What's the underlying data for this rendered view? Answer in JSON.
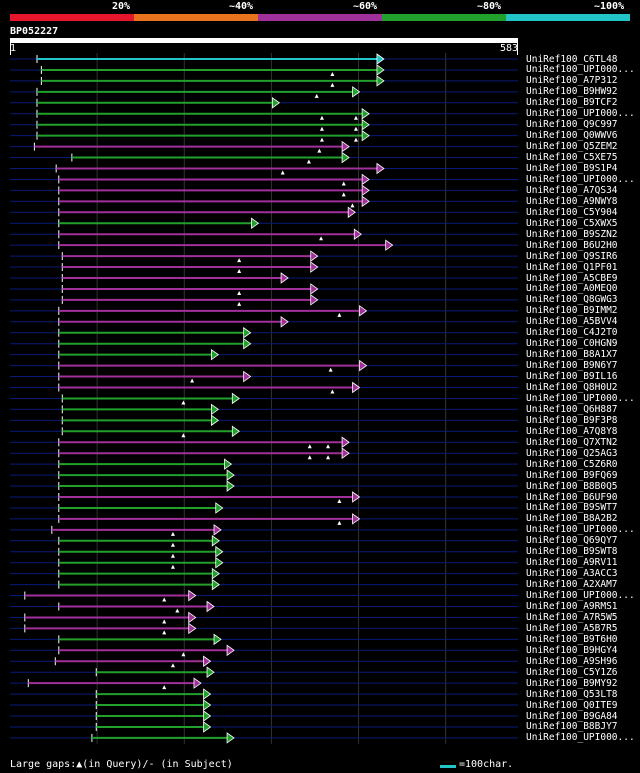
{
  "scale": {
    "labels": [
      "20%",
      "~40%",
      "~60%",
      "~80%",
      "~100%"
    ],
    "colors": [
      "#e6162c",
      "#e8731c",
      "#a0309a",
      "#22a02c",
      "#22c4c8"
    ]
  },
  "query": {
    "name": "BP052227",
    "start": "1",
    "end": "583",
    "length": 583
  },
  "colors": {
    "green": "#22a02c",
    "magenta": "#a0309a",
    "cyan": "#22c4c8",
    "gridline": "#0a1a78"
  },
  "hits": [
    {
      "name": "UniRef100_C6TL48",
      "color": "cyan",
      "start": 31,
      "end": 428,
      "arrow": true,
      "marks": []
    },
    {
      "name": "UniRef100_UPI000...",
      "color": "green",
      "start": 36,
      "end": 428,
      "arrow": true,
      "marks": [
        370
      ]
    },
    {
      "name": "UniRef100_A7P312",
      "color": "green",
      "start": 36,
      "end": 428,
      "arrow": true,
      "marks": [
        370
      ]
    },
    {
      "name": "UniRef100_B9HW92",
      "color": "green",
      "start": 31,
      "end": 400,
      "arrow": true,
      "marks": [
        352
      ]
    },
    {
      "name": "UniRef100_B9TCF2",
      "color": "green",
      "start": 31,
      "end": 308,
      "arrow": true,
      "marks": []
    },
    {
      "name": "UniRef100_UPI000...",
      "color": "green",
      "start": 31,
      "end": 411,
      "arrow": true,
      "marks": [
        358,
        397
      ]
    },
    {
      "name": "UniRef100_Q9C997",
      "color": "green",
      "start": 31,
      "end": 411,
      "arrow": true,
      "marks": [
        358,
        397
      ]
    },
    {
      "name": "UniRef100_Q0WWV6",
      "color": "green",
      "start": 31,
      "end": 411,
      "arrow": true,
      "marks": [
        358,
        397
      ]
    },
    {
      "name": "UniRef100_Q5ZEM2",
      "color": "magenta",
      "start": 28,
      "end": 388,
      "arrow": true,
      "marks": [
        355
      ]
    },
    {
      "name": "UniRef100_C5XE75",
      "color": "green",
      "start": 71,
      "end": 388,
      "arrow": true,
      "marks": [
        343
      ]
    },
    {
      "name": "UniRef100_B9S1P4",
      "color": "magenta",
      "start": 53,
      "end": 428,
      "arrow": true,
      "marks": [
        313
      ]
    },
    {
      "name": "UniRef100_UPI000...",
      "color": "magenta",
      "start": 56,
      "end": 411,
      "arrow": true,
      "marks": [
        383
      ]
    },
    {
      "name": "UniRef100_A7QS34",
      "color": "magenta",
      "start": 56,
      "end": 411,
      "arrow": true,
      "marks": [
        383
      ]
    },
    {
      "name": "UniRef100_A9NWY8",
      "color": "magenta",
      "start": 56,
      "end": 411,
      "arrow": true,
      "marks": [
        393
      ]
    },
    {
      "name": "UniRef100_C5Y904",
      "color": "magenta",
      "start": 56,
      "end": 395,
      "arrow": true,
      "marks": []
    },
    {
      "name": "UniRef100_C5XWX5",
      "color": "green",
      "start": 56,
      "end": 284,
      "arrow": true,
      "marks": []
    },
    {
      "name": "UniRef100_B9SZN2",
      "color": "magenta",
      "start": 56,
      "end": 402,
      "arrow": true,
      "marks": [
        357
      ]
    },
    {
      "name": "UniRef100_B6U2H0",
      "color": "magenta",
      "start": 56,
      "end": 438,
      "arrow": true,
      "marks": []
    },
    {
      "name": "UniRef100_Q9SIR6",
      "color": "magenta",
      "start": 60,
      "end": 352,
      "arrow": true,
      "marks": [
        263
      ]
    },
    {
      "name": "UniRef100_Q1PF01",
      "color": "magenta",
      "start": 60,
      "end": 352,
      "arrow": true,
      "marks": [
        263
      ]
    },
    {
      "name": "UniRef100_A5CBE9",
      "color": "magenta",
      "start": 60,
      "end": 318,
      "arrow": true,
      "marks": []
    },
    {
      "name": "UniRef100_A0MEQ0",
      "color": "magenta",
      "start": 60,
      "end": 352,
      "arrow": true,
      "marks": [
        263
      ]
    },
    {
      "name": "UniRef100_Q8GWG3",
      "color": "magenta",
      "start": 60,
      "end": 352,
      "arrow": true,
      "marks": [
        263
      ]
    },
    {
      "name": "UniRef100_B9IMM2",
      "color": "magenta",
      "start": 56,
      "end": 408,
      "arrow": true,
      "marks": [
        378
      ]
    },
    {
      "name": "UniRef100_A5BVV4",
      "color": "magenta",
      "start": 56,
      "end": 318,
      "arrow": true,
      "marks": []
    },
    {
      "name": "UniRef100_C4J2T0",
      "color": "green",
      "start": 56,
      "end": 275,
      "arrow": true,
      "marks": []
    },
    {
      "name": "UniRef100_C0HGN9",
      "color": "green",
      "start": 56,
      "end": 275,
      "arrow": true,
      "marks": []
    },
    {
      "name": "UniRef100_B8A1X7",
      "color": "green",
      "start": 56,
      "end": 238,
      "arrow": true,
      "marks": []
    },
    {
      "name": "UniRef100_B9N6Y7",
      "color": "magenta",
      "start": 56,
      "end": 408,
      "arrow": true,
      "marks": [
        368
      ]
    },
    {
      "name": "UniRef100_B9IL16",
      "color": "magenta",
      "start": 56,
      "end": 275,
      "arrow": true,
      "marks": [
        209
      ]
    },
    {
      "name": "UniRef100_Q8H0U2",
      "color": "magenta",
      "start": 56,
      "end": 400,
      "arrow": true,
      "marks": [
        370
      ]
    },
    {
      "name": "UniRef100_UPI000...",
      "color": "green",
      "start": 60,
      "end": 262,
      "arrow": true,
      "marks": [
        199
      ]
    },
    {
      "name": "UniRef100_Q6H887",
      "color": "green",
      "start": 60,
      "end": 238,
      "arrow": true,
      "marks": []
    },
    {
      "name": "UniRef100_B9F3P8",
      "color": "green",
      "start": 60,
      "end": 238,
      "arrow": true,
      "marks": []
    },
    {
      "name": "UniRef100_A7Q8Y8",
      "color": "green",
      "start": 60,
      "end": 262,
      "arrow": true,
      "marks": [
        199
      ]
    },
    {
      "name": "UniRef100_Q7XTN2",
      "color": "magenta",
      "start": 56,
      "end": 388,
      "arrow": true,
      "marks": [
        344,
        365
      ]
    },
    {
      "name": "UniRef100_Q25AG3",
      "color": "magenta",
      "start": 56,
      "end": 388,
      "arrow": true,
      "marks": [
        344,
        365
      ]
    },
    {
      "name": "UniRef100_C5Z6R0",
      "color": "green",
      "start": 56,
      "end": 253,
      "arrow": true,
      "marks": []
    },
    {
      "name": "UniRef100_B9FQ69",
      "color": "green",
      "start": 56,
      "end": 256,
      "arrow": true,
      "marks": []
    },
    {
      "name": "UniRef100_B8B0Q5",
      "color": "green",
      "start": 56,
      "end": 256,
      "arrow": true,
      "marks": []
    },
    {
      "name": "UniRef100_B6UF90",
      "color": "magenta",
      "start": 56,
      "end": 400,
      "arrow": true,
      "marks": [
        378
      ]
    },
    {
      "name": "UniRef100_B9SWT7",
      "color": "green",
      "start": 56,
      "end": 243,
      "arrow": true,
      "marks": []
    },
    {
      "name": "UniRef100_B8A2B2",
      "color": "magenta",
      "start": 56,
      "end": 400,
      "arrow": true,
      "marks": [
        378
      ]
    },
    {
      "name": "UniRef100_UPI000...",
      "color": "magenta",
      "start": 48,
      "end": 241,
      "arrow": true,
      "marks": [
        187
      ]
    },
    {
      "name": "UniRef100_Q69QY7",
      "color": "green",
      "start": 56,
      "end": 239,
      "arrow": true,
      "marks": [
        187
      ]
    },
    {
      "name": "UniRef100_B9SWT8",
      "color": "green",
      "start": 56,
      "end": 243,
      "arrow": true,
      "marks": [
        187
      ]
    },
    {
      "name": "UniRef100_A9RV11",
      "color": "green",
      "start": 56,
      "end": 243,
      "arrow": true,
      "marks": [
        187
      ]
    },
    {
      "name": "UniRef100_A3ACC3",
      "color": "green",
      "start": 56,
      "end": 239,
      "arrow": true,
      "marks": []
    },
    {
      "name": "UniRef100_A2XAM7",
      "color": "green",
      "start": 56,
      "end": 239,
      "arrow": true,
      "marks": []
    },
    {
      "name": "UniRef100_UPI000...",
      "color": "magenta",
      "start": 17,
      "end": 212,
      "arrow": true,
      "marks": [
        177
      ]
    },
    {
      "name": "UniRef100_A9RMS1",
      "color": "magenta",
      "start": 56,
      "end": 233,
      "arrow": true,
      "marks": [
        192
      ]
    },
    {
      "name": "UniRef100_A7R5W5",
      "color": "magenta",
      "start": 17,
      "end": 212,
      "arrow": true,
      "marks": [
        177
      ]
    },
    {
      "name": "UniRef100_A5B7R5",
      "color": "magenta",
      "start": 17,
      "end": 212,
      "arrow": true,
      "marks": [
        177
      ]
    },
    {
      "name": "UniRef100_B9T6H0",
      "color": "green",
      "start": 56,
      "end": 241,
      "arrow": true,
      "marks": []
    },
    {
      "name": "UniRef100_B9HGY4",
      "color": "magenta",
      "start": 56,
      "end": 256,
      "arrow": true,
      "marks": [
        199
      ]
    },
    {
      "name": "UniRef100_A9SH96",
      "color": "magenta",
      "start": 52,
      "end": 229,
      "arrow": true,
      "marks": [
        187
      ]
    },
    {
      "name": "UniRef100_C5Y1Z6",
      "color": "green",
      "start": 99,
      "end": 233,
      "arrow": true,
      "marks": []
    },
    {
      "name": "UniRef100_B9MY92",
      "color": "magenta",
      "start": 21,
      "end": 218,
      "arrow": true,
      "marks": [
        177
      ]
    },
    {
      "name": "UniRef100_Q53LT8",
      "color": "green",
      "start": 99,
      "end": 229,
      "arrow": true,
      "marks": []
    },
    {
      "name": "UniRef100_Q0ITE9",
      "color": "green",
      "start": 99,
      "end": 229,
      "arrow": true,
      "marks": []
    },
    {
      "name": "UniRef100_B9GA84",
      "color": "green",
      "start": 99,
      "end": 229,
      "arrow": true,
      "marks": []
    },
    {
      "name": "UniRef100_B8BJY7",
      "color": "green",
      "start": 99,
      "end": 229,
      "arrow": true,
      "marks": []
    },
    {
      "name": "UniRef100_UPI000...",
      "color": "green",
      "start": 94,
      "end": 256,
      "arrow": true,
      "marks": []
    }
  ],
  "footer": {
    "gaps_text": "Large gaps:▲(in Query)/- (in Subject)",
    "legend_text": "=100char."
  }
}
